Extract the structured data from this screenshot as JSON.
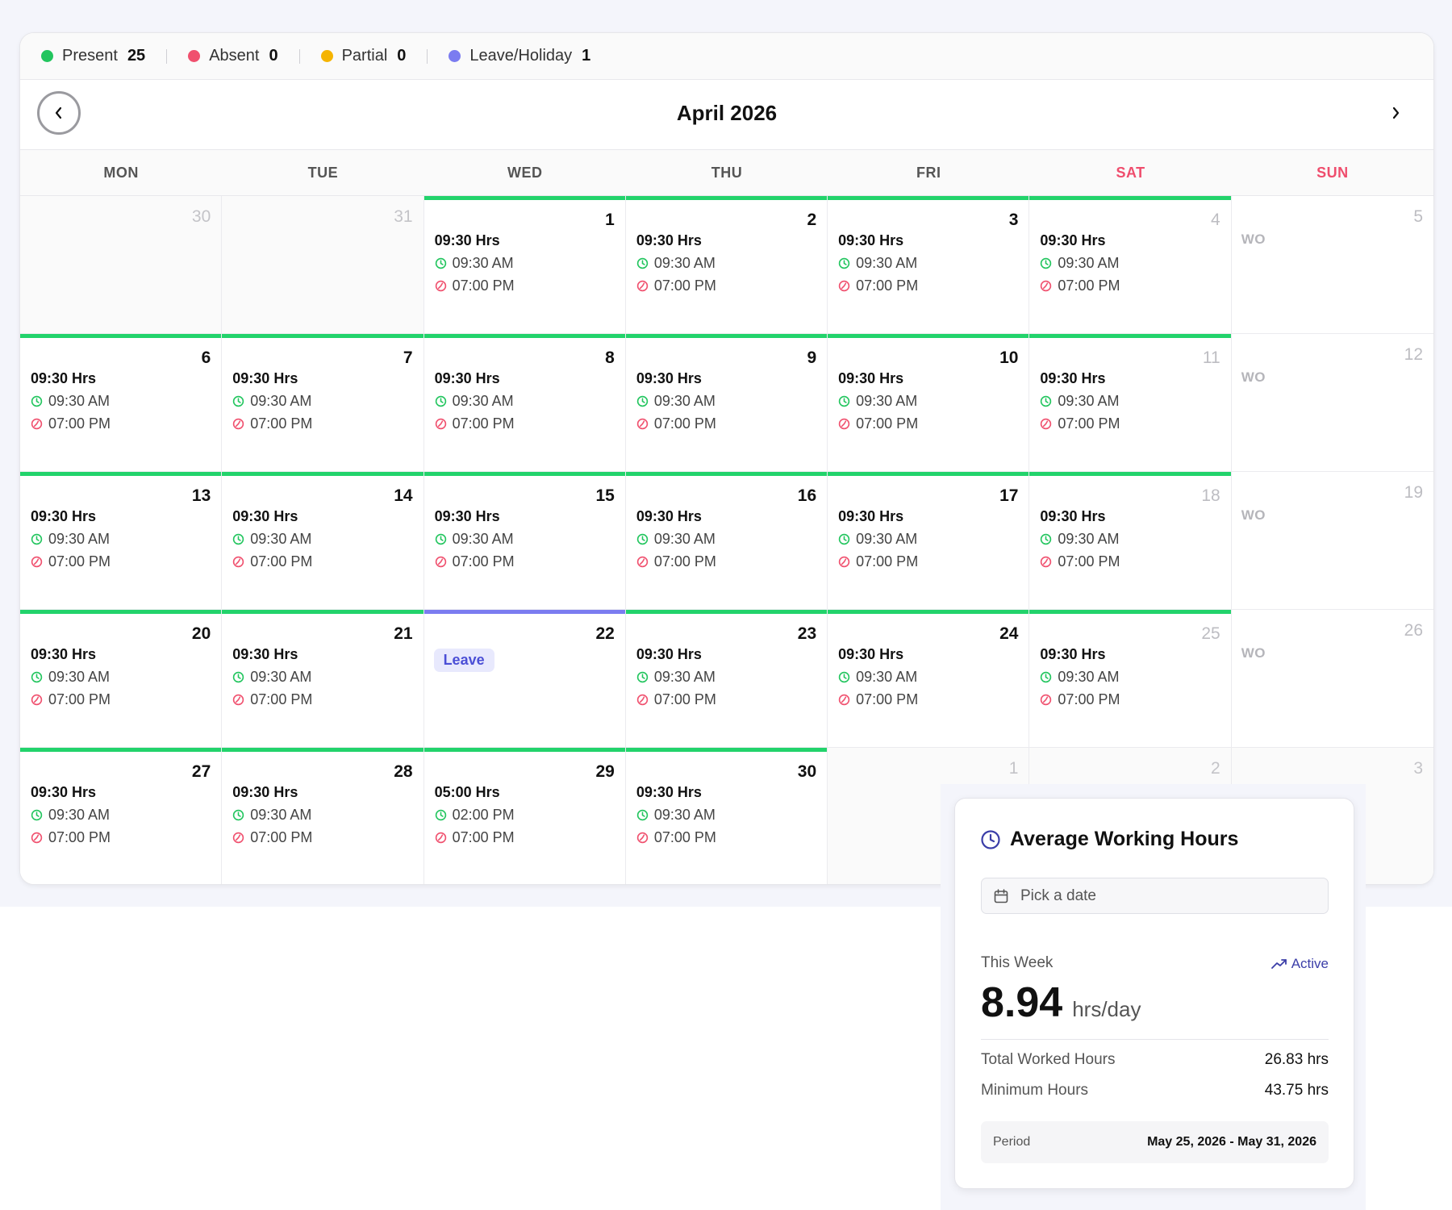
{
  "legend": [
    {
      "label": "Present",
      "count": "25",
      "color": "#22c55e"
    },
    {
      "label": "Absent",
      "count": "0",
      "color": "#f0506e"
    },
    {
      "label": "Partial",
      "count": "0",
      "color": "#f5b400"
    },
    {
      "label": "Leave/Holiday",
      "count": "1",
      "color": "#7b7cf0"
    }
  ],
  "calendar": {
    "month_title": "April 2026",
    "prev_icon": "chevron-left-icon",
    "next_icon": "chevron-right-icon",
    "weekdays": [
      "MON",
      "TUE",
      "WED",
      "THU",
      "FRI",
      "SAT",
      "SUN"
    ],
    "colors": {
      "present_bar": "#22d36b",
      "leave_bar": "#7b7cf0",
      "weekend_header": "#ef4d6d"
    },
    "days": [
      {
        "num": "30",
        "kind": "outside"
      },
      {
        "num": "31",
        "kind": "outside"
      },
      {
        "num": "1",
        "kind": "present",
        "hrs": "09:30 Hrs",
        "in": "09:30 AM",
        "out": "07:00 PM"
      },
      {
        "num": "2",
        "kind": "present",
        "hrs": "09:30 Hrs",
        "in": "09:30 AM",
        "out": "07:00 PM"
      },
      {
        "num": "3",
        "kind": "present",
        "hrs": "09:30 Hrs",
        "in": "09:30 AM",
        "out": "07:00 PM"
      },
      {
        "num": "4",
        "kind": "present",
        "sat": true,
        "hrs": "09:30 Hrs",
        "in": "09:30 AM",
        "out": "07:00 PM"
      },
      {
        "num": "5",
        "kind": "wo",
        "wo": "WO"
      },
      {
        "num": "6",
        "kind": "present",
        "hrs": "09:30 Hrs",
        "in": "09:30 AM",
        "out": "07:00 PM"
      },
      {
        "num": "7",
        "kind": "present",
        "hrs": "09:30 Hrs",
        "in": "09:30 AM",
        "out": "07:00 PM"
      },
      {
        "num": "8",
        "kind": "present",
        "hrs": "09:30 Hrs",
        "in": "09:30 AM",
        "out": "07:00 PM"
      },
      {
        "num": "9",
        "kind": "present",
        "hrs": "09:30 Hrs",
        "in": "09:30 AM",
        "out": "07:00 PM"
      },
      {
        "num": "10",
        "kind": "present",
        "hrs": "09:30 Hrs",
        "in": "09:30 AM",
        "out": "07:00 PM"
      },
      {
        "num": "11",
        "kind": "present",
        "sat": true,
        "hrs": "09:30 Hrs",
        "in": "09:30 AM",
        "out": "07:00 PM"
      },
      {
        "num": "12",
        "kind": "wo",
        "wo": "WO"
      },
      {
        "num": "13",
        "kind": "present",
        "hrs": "09:30 Hrs",
        "in": "09:30 AM",
        "out": "07:00 PM"
      },
      {
        "num": "14",
        "kind": "present",
        "hrs": "09:30 Hrs",
        "in": "09:30 AM",
        "out": "07:00 PM"
      },
      {
        "num": "15",
        "kind": "present",
        "hrs": "09:30 Hrs",
        "in": "09:30 AM",
        "out": "07:00 PM"
      },
      {
        "num": "16",
        "kind": "present",
        "hrs": "09:30 Hrs",
        "in": "09:30 AM",
        "out": "07:00 PM"
      },
      {
        "num": "17",
        "kind": "present",
        "hrs": "09:30 Hrs",
        "in": "09:30 AM",
        "out": "07:00 PM"
      },
      {
        "num": "18",
        "kind": "present",
        "sat": true,
        "hrs": "09:30 Hrs",
        "in": "09:30 AM",
        "out": "07:00 PM"
      },
      {
        "num": "19",
        "kind": "wo",
        "wo": "WO"
      },
      {
        "num": "20",
        "kind": "present",
        "hrs": "09:30 Hrs",
        "in": "09:30 AM",
        "out": "07:00 PM"
      },
      {
        "num": "21",
        "kind": "present",
        "hrs": "09:30 Hrs",
        "in": "09:30 AM",
        "out": "07:00 PM"
      },
      {
        "num": "22",
        "kind": "leave",
        "badge": "Leave"
      },
      {
        "num": "23",
        "kind": "present",
        "hrs": "09:30 Hrs",
        "in": "09:30 AM",
        "out": "07:00 PM"
      },
      {
        "num": "24",
        "kind": "present",
        "hrs": "09:30 Hrs",
        "in": "09:30 AM",
        "out": "07:00 PM"
      },
      {
        "num": "25",
        "kind": "present",
        "sat": true,
        "hrs": "09:30 Hrs",
        "in": "09:30 AM",
        "out": "07:00 PM"
      },
      {
        "num": "26",
        "kind": "wo",
        "wo": "WO"
      },
      {
        "num": "27",
        "kind": "present",
        "hrs": "09:30 Hrs",
        "in": "09:30 AM",
        "out": "07:00 PM"
      },
      {
        "num": "28",
        "kind": "present",
        "hrs": "09:30 Hrs",
        "in": "09:30 AM",
        "out": "07:00 PM"
      },
      {
        "num": "29",
        "kind": "present",
        "hrs": "05:00 Hrs",
        "in": "02:00 PM",
        "out": "07:00 PM"
      },
      {
        "num": "30",
        "kind": "present",
        "hrs": "09:30 Hrs",
        "in": "09:30 AM",
        "out": "07:00 PM"
      },
      {
        "num": "1",
        "kind": "outside"
      },
      {
        "num": "2",
        "kind": "outside"
      },
      {
        "num": "3",
        "kind": "outside"
      }
    ]
  },
  "avg_card": {
    "title": "Average Working Hours",
    "title_icon": "clock-icon",
    "date_placeholder": "Pick a date",
    "date_icon": "calendar-icon",
    "week_label": "This Week",
    "status_label": "Active",
    "status_icon": "trending-up-icon",
    "avg_value": "8.94",
    "avg_unit": "hrs/day",
    "total_label": "Total Worked Hours",
    "total_value": "26.83 hrs",
    "min_label": "Minimum Hours",
    "min_value": "43.75 hrs",
    "period_label": "Period",
    "period_value": "May 25, 2026 - May 31, 2026"
  }
}
